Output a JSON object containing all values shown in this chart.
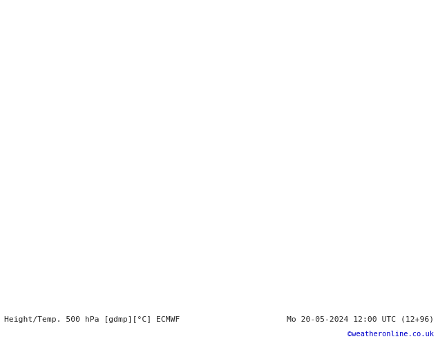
{
  "title_left": "Height/Temp. 500 hPa [gdmp][°C] ECMWF",
  "title_right": "Mo 20-05-2024 12:00 UTC (12+96)",
  "credit": "©weatheronline.co.uk",
  "background_color": "#ffffff",
  "fig_width": 6.34,
  "fig_height": 4.9,
  "dpi": 100,
  "land_color": "#c8e8a0",
  "sea_color": "#c8d0d0",
  "coast_color": "#888888",
  "border_color": "#aaaaaa",
  "geo_color": "#000000",
  "geo_thick_lw": 2.2,
  "geo_thin_lw": 0.9,
  "temp_cyan_color": "#00c8c8",
  "temp_blue_color": "#0050ff",
  "temp_orange_color": "#ff9000",
  "temp_green_color": "#80c020",
  "geo_label_fontsize": 7,
  "temp_label_fontsize": 7,
  "bottom_bar_color": "#e0e0e0",
  "bottom_text_color": "#222222",
  "credit_color": "#0000cc",
  "map_lon_min": -45,
  "map_lon_max": 42,
  "map_lat_min": 24,
  "map_lat_max": 76,
  "central_longitude": 0
}
